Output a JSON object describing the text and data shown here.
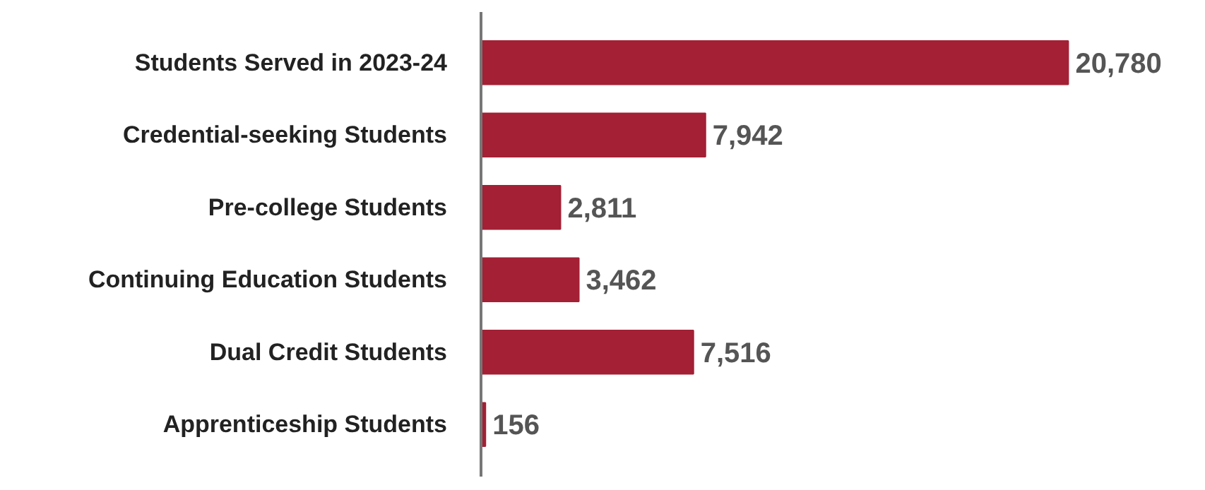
{
  "chart_data": {
    "type": "bar",
    "orientation": "horizontal",
    "categories": [
      "Students Served in 2023-24",
      "Credential-seeking Students",
      "Pre-college Students",
      "Continuing Education Students",
      "Dual Credit Students",
      "Apprenticeship Students"
    ],
    "values": [
      20780,
      7942,
      2811,
      3462,
      7516,
      156
    ],
    "value_labels": [
      "20,780",
      "7,942",
      "2,811",
      "3,462",
      "7,516",
      "156"
    ],
    "color": "#a32035",
    "grid": false
  }
}
